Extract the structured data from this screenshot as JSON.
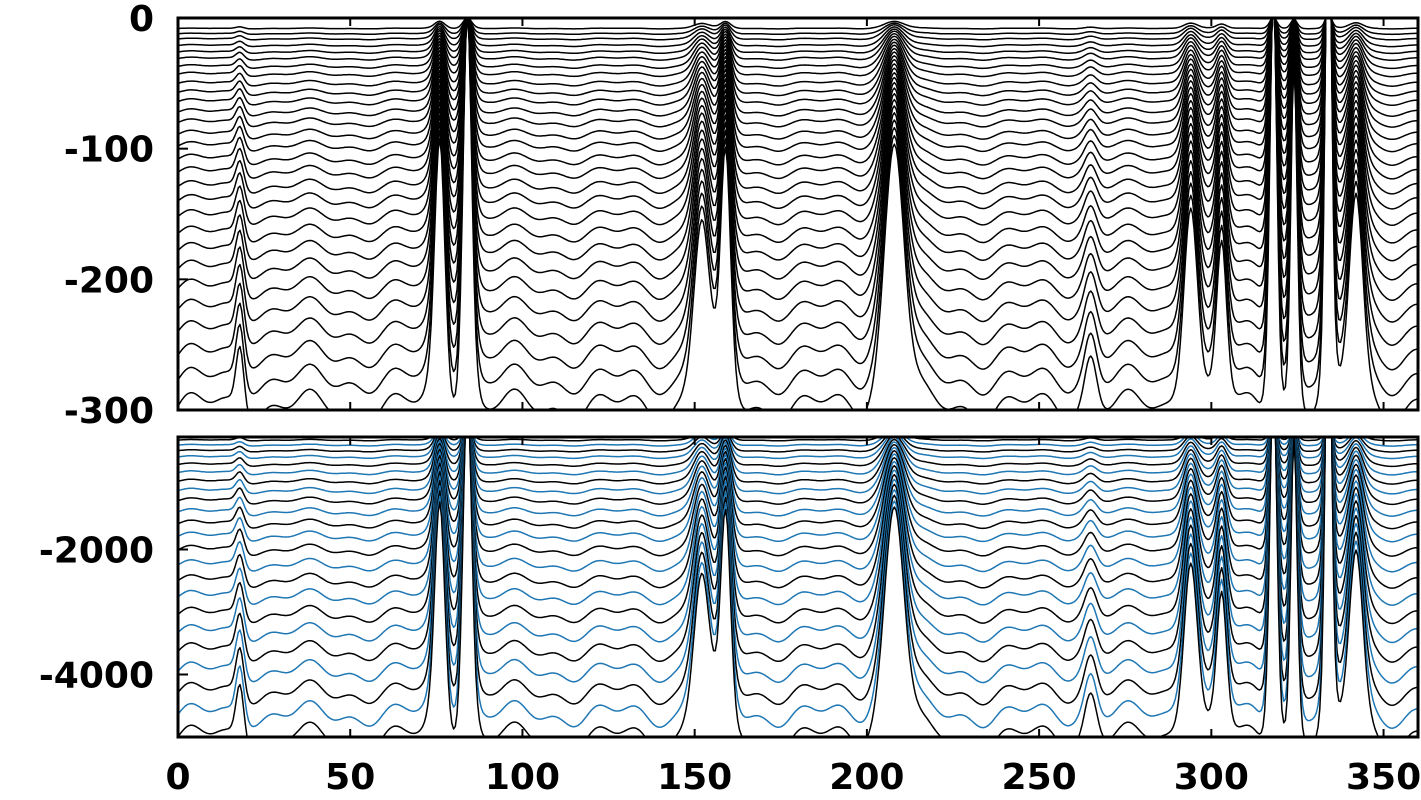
{
  "chart_data": [
    {
      "type": "line",
      "title": "",
      "xlabel": "",
      "ylabel": "",
      "xlim": [
        0,
        360
      ],
      "ylim": [
        -300,
        0
      ],
      "grid": false,
      "legend": "none",
      "x_ticks": [
        0,
        50,
        100,
        150,
        200,
        250,
        300,
        350
      ],
      "y_ticks": [
        0,
        -100,
        -200,
        -300
      ],
      "y_tick_labels": [
        "0",
        "-100",
        "-200",
        "-300"
      ],
      "colors": {
        "primary": "#000000",
        "secondary": "#1f77b4"
      },
      "peaks": [
        {
          "x": 76,
          "width": 2.6,
          "amp": 1.0
        },
        {
          "x": 84,
          "width": 2.2,
          "amp": 1.5
        },
        {
          "x": 152,
          "width": 4.0,
          "amp": 0.7
        },
        {
          "x": 159,
          "width": 2.5,
          "amp": 0.9
        },
        {
          "x": 208,
          "width": 5.0,
          "amp": 1.0
        },
        {
          "x": 294,
          "width": 3.5,
          "amp": 0.8
        },
        {
          "x": 303,
          "width": 2.5,
          "amp": 0.6
        },
        {
          "x": 318,
          "width": 1.8,
          "amp": 1.6
        },
        {
          "x": 324,
          "width": 1.6,
          "amp": 1.3
        },
        {
          "x": 334,
          "width": 1.6,
          "amp": 2.0
        },
        {
          "x": 342,
          "width": 3.5,
          "amp": 0.8
        },
        {
          "x": 18,
          "width": 2.0,
          "amp": 0.25
        },
        {
          "x": 265,
          "width": 3.0,
          "amp": 0.2
        }
      ],
      "depths": [
        -8,
        -12,
        -16,
        -21,
        -26,
        -31,
        -37,
        -43,
        -50,
        -57,
        -64,
        -72,
        -80,
        -89,
        -98,
        -108,
        -118,
        -129,
        -140,
        -152,
        -165,
        -178,
        -192,
        -207,
        -223,
        -240,
        -258,
        -277,
        -297
      ]
    },
    {
      "type": "line",
      "title": "",
      "xlabel": "",
      "ylabel": "",
      "xlim": [
        0,
        360
      ],
      "ylim": [
        -5000,
        -200
      ],
      "grid": false,
      "legend": "none",
      "x_ticks": [
        0,
        50,
        100,
        150,
        200,
        250,
        300,
        350
      ],
      "x_tick_labels": [
        "0",
        "50",
        "100",
        "150",
        "200",
        "250",
        "300",
        "350"
      ],
      "y_ticks": [
        -2000,
        -4000
      ],
      "y_tick_labels": [
        "-2000",
        "-4000"
      ],
      "colors": {
        "primary": "#000000",
        "secondary": "#1f77b4"
      },
      "depths": [
        -250,
        -330,
        -420,
        -520,
        -640,
        -770,
        -910,
        -1060,
        -1220,
        -1400,
        -1590,
        -1790,
        -2010,
        -2250,
        -2500,
        -2760,
        -3040,
        -3330,
        -3630,
        -3950,
        -4290,
        -4640,
        -5000
      ]
    }
  ]
}
